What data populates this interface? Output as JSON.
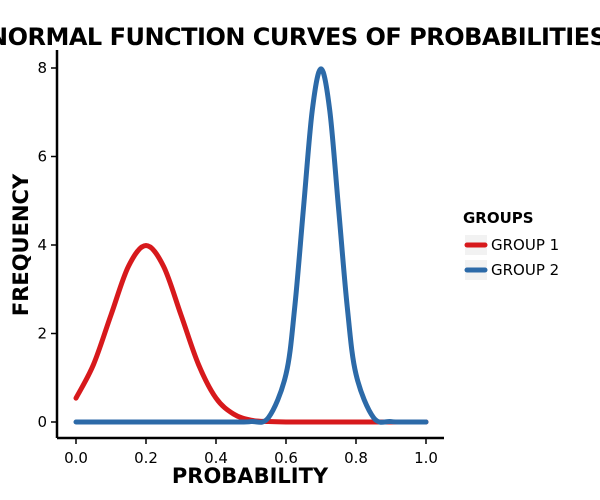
{
  "chart_data": {
    "type": "line",
    "title": "NORMAL FUNCTION CURVES OF PROBABILITIES",
    "xlabel": "PROBABILITY",
    "ylabel": "FREQUENCY",
    "xlim": [
      0,
      1
    ],
    "ylim": [
      0,
      8
    ],
    "xticks": [
      "0.0",
      "0.2",
      "0.4",
      "0.6",
      "0.8",
      "1.0"
    ],
    "yticks": [
      "0",
      "2",
      "4",
      "6",
      "8"
    ],
    "grid": false,
    "legend": {
      "title": "GROUPS",
      "placement": "right"
    },
    "series": [
      {
        "name": "GROUP 1",
        "color": "#d7191c",
        "x": [
          0.0,
          0.05,
          0.1,
          0.15,
          0.2,
          0.25,
          0.3,
          0.35,
          0.4,
          0.45,
          0.5,
          0.55,
          0.6,
          0.7,
          0.8,
          0.9,
          1.0
        ],
        "values": [
          0.54,
          1.3,
          2.42,
          3.52,
          3.99,
          3.52,
          2.42,
          1.3,
          0.54,
          0.18,
          0.04,
          0.01,
          0.0,
          0.0,
          0.0,
          0.0,
          0.0
        ]
      },
      {
        "name": "GROUP 2",
        "color": "#2c6aa8",
        "x": [
          0.0,
          0.1,
          0.2,
          0.3,
          0.4,
          0.45,
          0.5,
          0.55,
          0.6,
          0.625,
          0.65,
          0.675,
          0.7,
          0.725,
          0.75,
          0.775,
          0.8,
          0.85,
          0.9,
          0.95,
          1.0
        ],
        "values": [
          0.0,
          0.0,
          0.0,
          0.0,
          0.0,
          0.0,
          0.01,
          0.1,
          1.08,
          2.6,
          4.84,
          7.04,
          7.98,
          7.04,
          4.84,
          2.6,
          1.08,
          0.1,
          0.01,
          0.0,
          0.0
        ]
      }
    ]
  }
}
